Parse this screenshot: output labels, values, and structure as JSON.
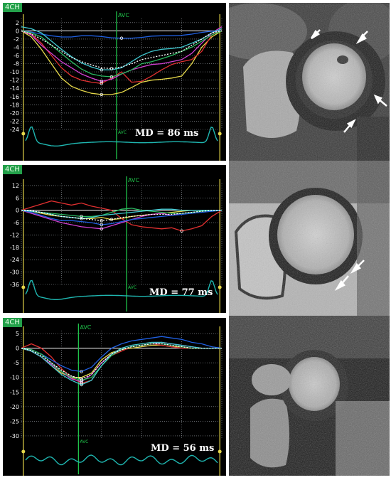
{
  "colors": {
    "background": "#000000",
    "grid": "#9aa0a6",
    "frame_marker": "#e6d84a",
    "avc_marker": "#1fc24a",
    "ecg": "#1fb6b0",
    "baseline": "#ffffff",
    "badge": "#23a04a",
    "segment_colors": [
      "#e6d84a",
      "#e03030",
      "#d040d0",
      "#2060e0",
      "#2ab860",
      "#40c8d0",
      "#ffffff"
    ]
  },
  "chart_data": [
    {
      "type": "line",
      "view_label": "4CH",
      "avc_label": "AVC",
      "annotation": "MD = 86 ms",
      "x": [
        0,
        1,
        2,
        3,
        4,
        5,
        6,
        7,
        8,
        9,
        10,
        11,
        12,
        13,
        14,
        15,
        16,
        17,
        18,
        19,
        20
      ],
      "avc_x": 9.5,
      "frame_markers": [
        0.2,
        19.8
      ],
      "yticks": [
        2,
        0,
        -2,
        -4,
        -6,
        -8,
        -10,
        -12,
        -14,
        -16,
        -18,
        -20,
        -22,
        -24
      ],
      "ylim": [
        -24,
        3
      ],
      "series": [
        {
          "color": "#e6d84a",
          "values": [
            0,
            -1.5,
            -4.5,
            -8,
            -11.5,
            -13.5,
            -14.5,
            -15.2,
            -15.5,
            -15.5,
            -15,
            -13.8,
            -12.5,
            -12,
            -11.8,
            -11.5,
            -11,
            -8,
            -4,
            -1.5,
            0
          ]
        },
        {
          "color": "#e03030",
          "values": [
            0,
            -0.8,
            -3,
            -6,
            -9,
            -11,
            -12,
            -12.5,
            -12.8,
            -11.5,
            -10,
            -12.5,
            -12.3,
            -11,
            -9.5,
            -8.2,
            -7.5,
            -7,
            -5,
            -1,
            0.5
          ]
        },
        {
          "color": "#d040d0",
          "values": [
            0,
            -1,
            -3.5,
            -5.5,
            -7.5,
            -9,
            -10.5,
            -11.5,
            -12.3,
            -11.8,
            -10.5,
            -9.5,
            -8.8,
            -8.2,
            -8,
            -7.5,
            -7,
            -5.5,
            -3,
            -0.5,
            1
          ]
        },
        {
          "color": "#2060e0",
          "values": [
            0,
            -0.3,
            -0.8,
            -1.2,
            -1.5,
            -1.5,
            -1.2,
            -1.2,
            -1.4,
            -1.7,
            -1.8,
            -1.8,
            -1.6,
            -1.3,
            -1.2,
            -1.2,
            -1.1,
            -0.8,
            -0.4,
            -0.1,
            0
          ]
        },
        {
          "color": "#2ab860",
          "values": [
            0,
            -0.5,
            -1.5,
            -3.5,
            -5.5,
            -7.5,
            -9.3,
            -10.5,
            -11,
            -11.2,
            -10.5,
            -9.5,
            -8,
            -7.5,
            -6.8,
            -6,
            -5,
            -4,
            -2.5,
            -1,
            0
          ]
        },
        {
          "color": "#40c8d0",
          "values": [
            1,
            0.5,
            -0.5,
            -2.5,
            -4.5,
            -6.3,
            -7.8,
            -8.8,
            -9.5,
            -9.5,
            -9,
            -7.5,
            -6,
            -5,
            -4.5,
            -4.3,
            -4,
            -3,
            -2,
            -0.5,
            0.5
          ]
        },
        {
          "color": "#ffffff",
          "dashed": true,
          "values": [
            0,
            -0.8,
            -2,
            -3.5,
            -5,
            -6.5,
            -7.5,
            -8.3,
            -9,
            -9.2,
            -8.8,
            -8,
            -7,
            -6.5,
            -6,
            -5.5,
            -5,
            -3.5,
            -2,
            -0.5,
            0
          ]
        }
      ]
    },
    {
      "type": "line",
      "view_label": "4CH",
      "avc_label": "AVC",
      "annotation": "MD = 77 ms",
      "x": [
        0,
        1,
        2,
        3,
        4,
        5,
        6,
        7,
        8,
        9,
        10,
        11,
        12,
        13,
        14,
        15,
        16,
        17,
        18,
        19,
        20
      ],
      "avc_x": 10.5,
      "frame_markers": [
        0.2,
        19.8
      ],
      "yticks": [
        12,
        6,
        0,
        -6,
        -12,
        -18,
        -24,
        -30,
        -36
      ],
      "ylim": [
        -36,
        13
      ],
      "series": [
        {
          "color": "#e6d84a",
          "values": [
            0,
            -0.5,
            -1.5,
            -2.5,
            -3,
            -3.5,
            -4,
            -4,
            -3.5,
            -4.5,
            -4,
            -3,
            -2.5,
            -2,
            -1.5,
            -1,
            -0.5,
            0,
            0,
            0,
            0
          ]
        },
        {
          "color": "#e03030",
          "values": [
            0,
            1.5,
            3,
            4.5,
            3.5,
            2.5,
            3.5,
            2,
            1,
            0,
            -4,
            -7,
            -8,
            -8.5,
            -9,
            -8.5,
            -10,
            -9,
            -7.5,
            -3,
            0
          ]
        },
        {
          "color": "#d040d0",
          "values": [
            0,
            -1.5,
            -3,
            -4.5,
            -6,
            -7,
            -8,
            -8.5,
            -9,
            -7.5,
            -6,
            -4.5,
            -3,
            -2,
            -1.5,
            -2.5,
            -1.5,
            -1,
            -0.5,
            0,
            0
          ]
        },
        {
          "color": "#2060e0",
          "values": [
            0,
            -1,
            -2.5,
            -4,
            -5,
            -5,
            -5.5,
            -6,
            -7,
            -6.5,
            -5.5,
            -4.5,
            -4,
            -3.5,
            -3,
            -2.5,
            -2,
            -1.5,
            -1,
            -0.5,
            0
          ]
        },
        {
          "color": "#2ab860",
          "values": [
            0,
            -0.5,
            -1,
            -1.5,
            -2,
            -2.5,
            -3,
            -3,
            -2.5,
            -1,
            0.5,
            1,
            0,
            -0.5,
            -1,
            -1.5,
            -1.5,
            -1,
            -0.5,
            0,
            0
          ]
        },
        {
          "color": "#40c8d0",
          "values": [
            0,
            -0.5,
            -1,
            -2,
            -3,
            -3.5,
            -4,
            -3.5,
            -2.5,
            -2,
            -1.5,
            -1,
            -0.5,
            0,
            0.5,
            0.5,
            0,
            0,
            0,
            0,
            0
          ]
        },
        {
          "color": "#ffffff",
          "dashed": true,
          "values": [
            0,
            -0.3,
            -1,
            -2,
            -3,
            -3.5,
            -4,
            -4.5,
            -5,
            -4.5,
            -3.5,
            -3,
            -2.5,
            -2,
            -2,
            -2,
            -1.5,
            -1,
            -0.5,
            0,
            0
          ]
        }
      ]
    },
    {
      "type": "line",
      "view_label": "4CH",
      "avc_label": "AVC",
      "annotation": "MD = 56 ms",
      "x": [
        0,
        1,
        2,
        3,
        4,
        5,
        6,
        7,
        8,
        9,
        10,
        11,
        12,
        13,
        14,
        15,
        16,
        17,
        18,
        19,
        20
      ],
      "avc_x": 5.7,
      "frame_markers": [
        0.2,
        19.8
      ],
      "yticks": [
        5,
        0,
        -5,
        -10,
        -15,
        -20,
        -25,
        -30
      ],
      "ylim": [
        -31,
        6
      ],
      "series": [
        {
          "color": "#e6d84a",
          "values": [
            0,
            -1,
            -3,
            -6,
            -8.5,
            -10,
            -10,
            -8.5,
            -4,
            -1.5,
            -0.5,
            0,
            0.5,
            1,
            1,
            0.5,
            0.5,
            0,
            0,
            0,
            0
          ]
        },
        {
          "color": "#e03030",
          "values": [
            0,
            1.5,
            0,
            -3,
            -7,
            -10,
            -12,
            -11,
            -6,
            -2.5,
            -1,
            0.5,
            1,
            1.5,
            1,
            0.5,
            0,
            0,
            0,
            0,
            0
          ]
        },
        {
          "color": "#d040d0",
          "values": [
            0,
            -1,
            -3,
            -5.5,
            -8,
            -10.5,
            -11.5,
            -9,
            -5,
            -2,
            -0.5,
            0.5,
            1,
            1.5,
            2,
            1.5,
            1,
            0.5,
            0,
            0,
            0
          ]
        },
        {
          "color": "#2060e0",
          "values": [
            0,
            -0.5,
            -2,
            -4,
            -6,
            -7.5,
            -8,
            -6.5,
            -3,
            0,
            1.5,
            2.5,
            3,
            3.5,
            4,
            3.5,
            3,
            2,
            1.5,
            0.5,
            0
          ]
        },
        {
          "color": "#2ab860",
          "values": [
            0,
            -0.5,
            -2,
            -5,
            -8,
            -10,
            -11,
            -10,
            -6,
            -2.5,
            -0.5,
            0.5,
            1,
            1.5,
            1.5,
            1,
            0.5,
            0,
            0,
            0,
            0
          ]
        },
        {
          "color": "#40c8d0",
          "values": [
            0,
            -1,
            -3,
            -6,
            -9,
            -11,
            -12.5,
            -11,
            -6,
            -2,
            0,
            1,
            1.5,
            2,
            2,
            1.5,
            1,
            0.5,
            0,
            0,
            0
          ]
        },
        {
          "color": "#ffffff",
          "dashed": true,
          "values": [
            0,
            -0.8,
            -2.5,
            -5,
            -7.5,
            -9.5,
            -10.5,
            -9,
            -5,
            -2,
            -0.5,
            0.5,
            1,
            1.5,
            1.5,
            1,
            0.5,
            0,
            0,
            0,
            0
          ]
        }
      ]
    }
  ]
}
